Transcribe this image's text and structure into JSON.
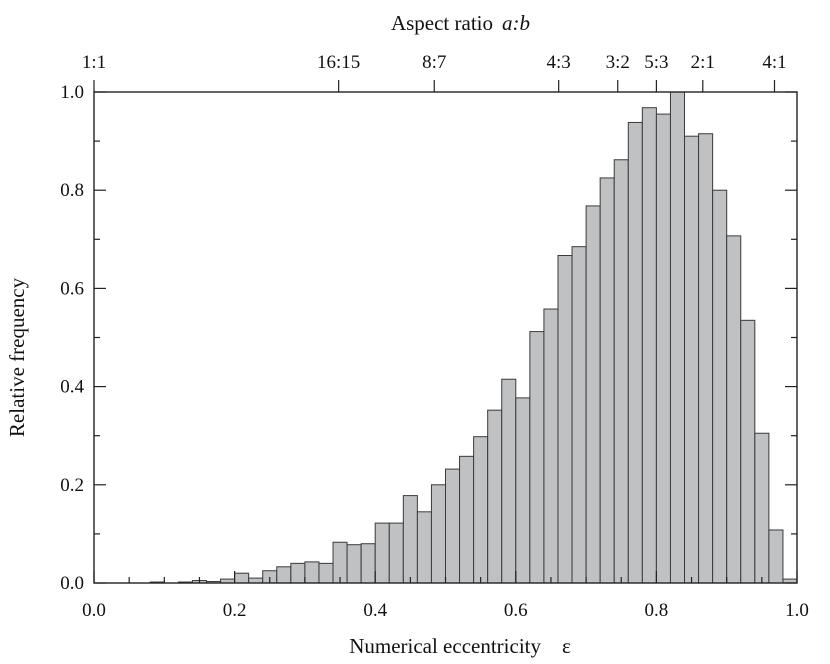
{
  "chart_data": {
    "type": "bar",
    "title": "",
    "xlabel": "Numerical eccentricity",
    "xlabel_symbol": "ε",
    "ylabel": "Relative frequency",
    "top_axis_label": "Aspect ratio",
    "top_axis_label_italic": "a:b",
    "xlim": [
      0.0,
      1.0
    ],
    "ylim": [
      0.0,
      1.0
    ],
    "x_ticks": [
      "0.0",
      "0.2",
      "0.4",
      "0.6",
      "0.8",
      "1.0"
    ],
    "y_ticks": [
      "0.0",
      "0.2",
      "0.4",
      "0.6",
      "0.8",
      "1.0"
    ],
    "top_ticks": [
      {
        "label": "1:1",
        "eccentricity": 0.0
      },
      {
        "label": "16:15",
        "eccentricity": 0.348
      },
      {
        "label": "8:7",
        "eccentricity": 0.484
      },
      {
        "label": "4:3",
        "eccentricity": 0.661
      },
      {
        "label": "3:2",
        "eccentricity": 0.745
      },
      {
        "label": "5:3",
        "eccentricity": 0.8
      },
      {
        "label": "2:1",
        "eccentricity": 0.866
      },
      {
        "label": "4:1",
        "eccentricity": 0.968
      }
    ],
    "bin_width": 0.02,
    "bin_starts": [
      0.0,
      0.02,
      0.04,
      0.06,
      0.08,
      0.1,
      0.12,
      0.14,
      0.16,
      0.18,
      0.2,
      0.22,
      0.24,
      0.26,
      0.28,
      0.3,
      0.32,
      0.34,
      0.36,
      0.38,
      0.4,
      0.42,
      0.44,
      0.46,
      0.48,
      0.5,
      0.52,
      0.54,
      0.56,
      0.58,
      0.6,
      0.62,
      0.64,
      0.66,
      0.68,
      0.7,
      0.72,
      0.74,
      0.76,
      0.78,
      0.8,
      0.82,
      0.84,
      0.86,
      0.88,
      0.9,
      0.92,
      0.94,
      0.96,
      0.98
    ],
    "values": [
      0.0,
      0.0,
      0.0,
      0.0,
      0.002,
      0.0,
      0.002,
      0.005,
      0.003,
      0.008,
      0.02,
      0.01,
      0.025,
      0.033,
      0.04,
      0.043,
      0.04,
      0.083,
      0.078,
      0.08,
      0.122,
      0.122,
      0.178,
      0.145,
      0.2,
      0.232,
      0.258,
      0.298,
      0.352,
      0.415,
      0.377,
      0.512,
      0.558,
      0.667,
      0.685,
      0.768,
      0.825,
      0.862,
      0.938,
      0.968,
      0.955,
      1.0,
      0.91,
      0.915,
      0.8,
      0.707,
      0.535,
      0.305,
      0.108,
      0.008
    ],
    "grid": false
  }
}
